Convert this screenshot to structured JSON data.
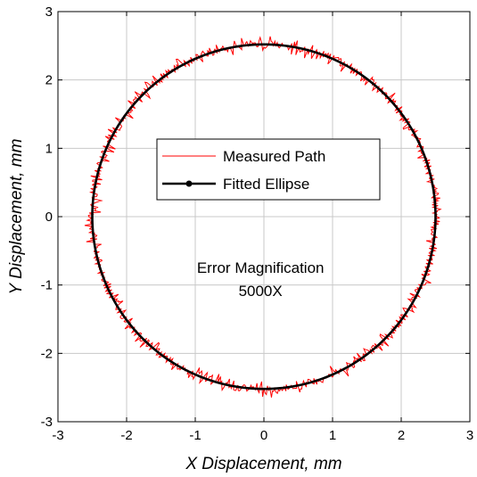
{
  "chart_data": {
    "type": "line",
    "title": "",
    "xlabel": "X Displacement, mm",
    "ylabel": "Y Displacement, mm",
    "xlim": [
      -3,
      3
    ],
    "ylim": [
      -3,
      3
    ],
    "xticks": [
      "-3",
      "-2",
      "-1",
      "0",
      "1",
      "2",
      "3"
    ],
    "yticks": [
      "-3",
      "-2",
      "-1",
      "0",
      "1",
      "2",
      "3"
    ],
    "grid": true,
    "legend_placement": "center",
    "annotation": [
      "Error Magnification",
      "5000X"
    ],
    "series": [
      {
        "name": "Measured Path",
        "color": "#ff0000",
        "style": "thin noisy line",
        "center": [
          0,
          0
        ],
        "radius_x": 2.5,
        "radius_y": 2.52,
        "noise_amplitude": 0.08
      },
      {
        "name": "Fitted Ellipse",
        "color": "#000000",
        "style": "thick line with dot marker",
        "center": [
          0,
          0
        ],
        "radius_x": 2.5,
        "radius_y": 2.52
      }
    ]
  }
}
